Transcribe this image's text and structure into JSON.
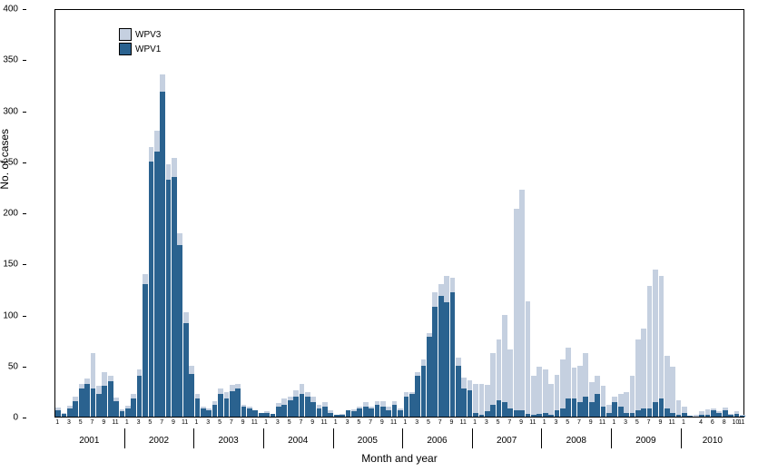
{
  "chart": {
    "type": "stacked-bar",
    "ylabel": "No. of cases",
    "xlabel": "Month and year",
    "ylim": [
      0,
      400
    ],
    "ytick_step": 50,
    "yticks": [
      0,
      50,
      100,
      150,
      200,
      250,
      300,
      350,
      400
    ],
    "label_fontsize": 12,
    "tick_fontsize": 10,
    "month_fontsize": 7,
    "background_color": "#ffffff",
    "border_color": "#000000",
    "bar_gap": 0.1,
    "colors": {
      "wpv1": "#2a628f",
      "wpv3": "#c5d0e0"
    },
    "legend": {
      "items": [
        {
          "label": "WPV3",
          "color_key": "wpv3"
        },
        {
          "label": "WPV1",
          "color_key": "wpv1"
        }
      ],
      "position": "top-left"
    },
    "years": [
      2001,
      2002,
      2003,
      2004,
      2005,
      2006,
      2007,
      2008,
      2009,
      2010
    ],
    "month_ticks_primary": [
      1,
      3,
      5,
      7,
      9,
      11
    ],
    "month_ticks_2010": [
      1,
      4,
      6,
      8,
      10,
      11
    ],
    "data": [
      {
        "y": 2001,
        "m": 1,
        "wpv1": 6,
        "wpv3": 3
      },
      {
        "y": 2001,
        "m": 2,
        "wpv1": 3,
        "wpv3": 1
      },
      {
        "y": 2001,
        "m": 3,
        "wpv1": 8,
        "wpv3": 3
      },
      {
        "y": 2001,
        "m": 4,
        "wpv1": 15,
        "wpv3": 5
      },
      {
        "y": 2001,
        "m": 5,
        "wpv1": 28,
        "wpv3": 4
      },
      {
        "y": 2001,
        "m": 6,
        "wpv1": 32,
        "wpv3": 5
      },
      {
        "y": 2001,
        "m": 7,
        "wpv1": 28,
        "wpv3": 34
      },
      {
        "y": 2001,
        "m": 8,
        "wpv1": 22,
        "wpv3": 8
      },
      {
        "y": 2001,
        "m": 9,
        "wpv1": 30,
        "wpv3": 14
      },
      {
        "y": 2001,
        "m": 10,
        "wpv1": 35,
        "wpv3": 5
      },
      {
        "y": 2001,
        "m": 11,
        "wpv1": 15,
        "wpv3": 4
      },
      {
        "y": 2001,
        "m": 12,
        "wpv1": 5,
        "wpv3": 2
      },
      {
        "y": 2002,
        "m": 1,
        "wpv1": 8,
        "wpv3": 3
      },
      {
        "y": 2002,
        "m": 2,
        "wpv1": 18,
        "wpv3": 4
      },
      {
        "y": 2002,
        "m": 3,
        "wpv1": 40,
        "wpv3": 6
      },
      {
        "y": 2002,
        "m": 4,
        "wpv1": 130,
        "wpv3": 10
      },
      {
        "y": 2002,
        "m": 5,
        "wpv1": 250,
        "wpv3": 14
      },
      {
        "y": 2002,
        "m": 6,
        "wpv1": 260,
        "wpv3": 20
      },
      {
        "y": 2002,
        "m": 7,
        "wpv1": 318,
        "wpv3": 17
      },
      {
        "y": 2002,
        "m": 8,
        "wpv1": 232,
        "wpv3": 15
      },
      {
        "y": 2002,
        "m": 9,
        "wpv1": 235,
        "wpv3": 18
      },
      {
        "y": 2002,
        "m": 10,
        "wpv1": 168,
        "wpv3": 12
      },
      {
        "y": 2002,
        "m": 11,
        "wpv1": 92,
        "wpv3": 10
      },
      {
        "y": 2002,
        "m": 12,
        "wpv1": 42,
        "wpv3": 8
      },
      {
        "y": 2003,
        "m": 1,
        "wpv1": 18,
        "wpv3": 4
      },
      {
        "y": 2003,
        "m": 2,
        "wpv1": 8,
        "wpv3": 2
      },
      {
        "y": 2003,
        "m": 3,
        "wpv1": 6,
        "wpv3": 2
      },
      {
        "y": 2003,
        "m": 4,
        "wpv1": 12,
        "wpv3": 3
      },
      {
        "y": 2003,
        "m": 5,
        "wpv1": 22,
        "wpv3": 6
      },
      {
        "y": 2003,
        "m": 6,
        "wpv1": 18,
        "wpv3": 6
      },
      {
        "y": 2003,
        "m": 7,
        "wpv1": 25,
        "wpv3": 6
      },
      {
        "y": 2003,
        "m": 8,
        "wpv1": 28,
        "wpv3": 4
      },
      {
        "y": 2003,
        "m": 9,
        "wpv1": 10,
        "wpv3": 2
      },
      {
        "y": 2003,
        "m": 10,
        "wpv1": 8,
        "wpv3": 2
      },
      {
        "y": 2003,
        "m": 11,
        "wpv1": 6,
        "wpv3": 0
      },
      {
        "y": 2003,
        "m": 12,
        "wpv1": 4,
        "wpv3": 0
      },
      {
        "y": 2004,
        "m": 1,
        "wpv1": 4,
        "wpv3": 1
      },
      {
        "y": 2004,
        "m": 2,
        "wpv1": 3,
        "wpv3": 0
      },
      {
        "y": 2004,
        "m": 3,
        "wpv1": 10,
        "wpv3": 3
      },
      {
        "y": 2004,
        "m": 4,
        "wpv1": 12,
        "wpv3": 6
      },
      {
        "y": 2004,
        "m": 5,
        "wpv1": 16,
        "wpv3": 4
      },
      {
        "y": 2004,
        "m": 6,
        "wpv1": 20,
        "wpv3": 6
      },
      {
        "y": 2004,
        "m": 7,
        "wpv1": 22,
        "wpv3": 10
      },
      {
        "y": 2004,
        "m": 8,
        "wpv1": 20,
        "wpv3": 4
      },
      {
        "y": 2004,
        "m": 9,
        "wpv1": 14,
        "wpv3": 6
      },
      {
        "y": 2004,
        "m": 10,
        "wpv1": 8,
        "wpv3": 4
      },
      {
        "y": 2004,
        "m": 11,
        "wpv1": 10,
        "wpv3": 4
      },
      {
        "y": 2004,
        "m": 12,
        "wpv1": 4,
        "wpv3": 2
      },
      {
        "y": 2005,
        "m": 1,
        "wpv1": 2,
        "wpv3": 0
      },
      {
        "y": 2005,
        "m": 2,
        "wpv1": 2,
        "wpv3": 1
      },
      {
        "y": 2005,
        "m": 3,
        "wpv1": 6,
        "wpv3": 0
      },
      {
        "y": 2005,
        "m": 4,
        "wpv1": 5,
        "wpv3": 2
      },
      {
        "y": 2005,
        "m": 5,
        "wpv1": 8,
        "wpv3": 2
      },
      {
        "y": 2005,
        "m": 6,
        "wpv1": 10,
        "wpv3": 4
      },
      {
        "y": 2005,
        "m": 7,
        "wpv1": 8,
        "wpv3": 2
      },
      {
        "y": 2005,
        "m": 8,
        "wpv1": 12,
        "wpv3": 3
      },
      {
        "y": 2005,
        "m": 9,
        "wpv1": 10,
        "wpv3": 5
      },
      {
        "y": 2005,
        "m": 10,
        "wpv1": 6,
        "wpv3": 4
      },
      {
        "y": 2005,
        "m": 11,
        "wpv1": 12,
        "wpv3": 3
      },
      {
        "y": 2005,
        "m": 12,
        "wpv1": 6,
        "wpv3": 2
      },
      {
        "y": 2006,
        "m": 1,
        "wpv1": 20,
        "wpv3": 4
      },
      {
        "y": 2006,
        "m": 2,
        "wpv1": 22,
        "wpv3": 2
      },
      {
        "y": 2006,
        "m": 3,
        "wpv1": 40,
        "wpv3": 4
      },
      {
        "y": 2006,
        "m": 4,
        "wpv1": 50,
        "wpv3": 6
      },
      {
        "y": 2006,
        "m": 5,
        "wpv1": 78,
        "wpv3": 4
      },
      {
        "y": 2006,
        "m": 6,
        "wpv1": 108,
        "wpv3": 14
      },
      {
        "y": 2006,
        "m": 7,
        "wpv1": 118,
        "wpv3": 12
      },
      {
        "y": 2006,
        "m": 8,
        "wpv1": 112,
        "wpv3": 26
      },
      {
        "y": 2006,
        "m": 9,
        "wpv1": 122,
        "wpv3": 14
      },
      {
        "y": 2006,
        "m": 10,
        "wpv1": 50,
        "wpv3": 8
      },
      {
        "y": 2006,
        "m": 11,
        "wpv1": 28,
        "wpv3": 10
      },
      {
        "y": 2006,
        "m": 12,
        "wpv1": 26,
        "wpv3": 10
      },
      {
        "y": 2007,
        "m": 1,
        "wpv1": 4,
        "wpv3": 28
      },
      {
        "y": 2007,
        "m": 2,
        "wpv1": 2,
        "wpv3": 30
      },
      {
        "y": 2007,
        "m": 3,
        "wpv1": 5,
        "wpv3": 26
      },
      {
        "y": 2007,
        "m": 4,
        "wpv1": 12,
        "wpv3": 50
      },
      {
        "y": 2007,
        "m": 5,
        "wpv1": 16,
        "wpv3": 60
      },
      {
        "y": 2007,
        "m": 6,
        "wpv1": 14,
        "wpv3": 86
      },
      {
        "y": 2007,
        "m": 7,
        "wpv1": 8,
        "wpv3": 58
      },
      {
        "y": 2007,
        "m": 8,
        "wpv1": 6,
        "wpv3": 198
      },
      {
        "y": 2007,
        "m": 9,
        "wpv1": 6,
        "wpv3": 216
      },
      {
        "y": 2007,
        "m": 10,
        "wpv1": 3,
        "wpv3": 110
      },
      {
        "y": 2007,
        "m": 11,
        "wpv1": 2,
        "wpv3": 38
      },
      {
        "y": 2007,
        "m": 12,
        "wpv1": 3,
        "wpv3": 46
      },
      {
        "y": 2008,
        "m": 1,
        "wpv1": 4,
        "wpv3": 42
      },
      {
        "y": 2008,
        "m": 2,
        "wpv1": 2,
        "wpv3": 30
      },
      {
        "y": 2008,
        "m": 3,
        "wpv1": 6,
        "wpv3": 35
      },
      {
        "y": 2008,
        "m": 4,
        "wpv1": 8,
        "wpv3": 48
      },
      {
        "y": 2008,
        "m": 5,
        "wpv1": 18,
        "wpv3": 50
      },
      {
        "y": 2008,
        "m": 6,
        "wpv1": 18,
        "wpv3": 30
      },
      {
        "y": 2008,
        "m": 7,
        "wpv1": 14,
        "wpv3": 36
      },
      {
        "y": 2008,
        "m": 8,
        "wpv1": 20,
        "wpv3": 42
      },
      {
        "y": 2008,
        "m": 9,
        "wpv1": 14,
        "wpv3": 20
      },
      {
        "y": 2008,
        "m": 10,
        "wpv1": 22,
        "wpv3": 18
      },
      {
        "y": 2008,
        "m": 11,
        "wpv1": 10,
        "wpv3": 20
      },
      {
        "y": 2008,
        "m": 12,
        "wpv1": 4,
        "wpv3": 8
      },
      {
        "y": 2009,
        "m": 1,
        "wpv1": 14,
        "wpv3": 6
      },
      {
        "y": 2009,
        "m": 2,
        "wpv1": 10,
        "wpv3": 12
      },
      {
        "y": 2009,
        "m": 3,
        "wpv1": 4,
        "wpv3": 20
      },
      {
        "y": 2009,
        "m": 4,
        "wpv1": 4,
        "wpv3": 36
      },
      {
        "y": 2009,
        "m": 5,
        "wpv1": 6,
        "wpv3": 70
      },
      {
        "y": 2009,
        "m": 6,
        "wpv1": 8,
        "wpv3": 78
      },
      {
        "y": 2009,
        "m": 7,
        "wpv1": 8,
        "wpv3": 120
      },
      {
        "y": 2009,
        "m": 8,
        "wpv1": 14,
        "wpv3": 130
      },
      {
        "y": 2009,
        "m": 9,
        "wpv1": 18,
        "wpv3": 120
      },
      {
        "y": 2009,
        "m": 10,
        "wpv1": 8,
        "wpv3": 52
      },
      {
        "y": 2009,
        "m": 11,
        "wpv1": 4,
        "wpv3": 45
      },
      {
        "y": 2009,
        "m": 12,
        "wpv1": 2,
        "wpv3": 14
      },
      {
        "y": 2010,
        "m": 1,
        "wpv1": 4,
        "wpv3": 6
      },
      {
        "y": 2010,
        "m": 2,
        "wpv1": 1,
        "wpv3": 0
      },
      {
        "y": 2010,
        "m": 3,
        "wpv1": 0,
        "wpv3": 2
      },
      {
        "y": 2010,
        "m": 4,
        "wpv1": 2,
        "wpv3": 3
      },
      {
        "y": 2010,
        "m": 5,
        "wpv1": 2,
        "wpv3": 5
      },
      {
        "y": 2010,
        "m": 6,
        "wpv1": 6,
        "wpv3": 2
      },
      {
        "y": 2010,
        "m": 7,
        "wpv1": 4,
        "wpv3": 1
      },
      {
        "y": 2010,
        "m": 8,
        "wpv1": 6,
        "wpv3": 3
      },
      {
        "y": 2010,
        "m": 9,
        "wpv1": 2,
        "wpv3": 1
      },
      {
        "y": 2010,
        "m": 10,
        "wpv1": 3,
        "wpv3": 2
      },
      {
        "y": 2010,
        "m": 11,
        "wpv1": 1,
        "wpv3": 1
      }
    ]
  }
}
